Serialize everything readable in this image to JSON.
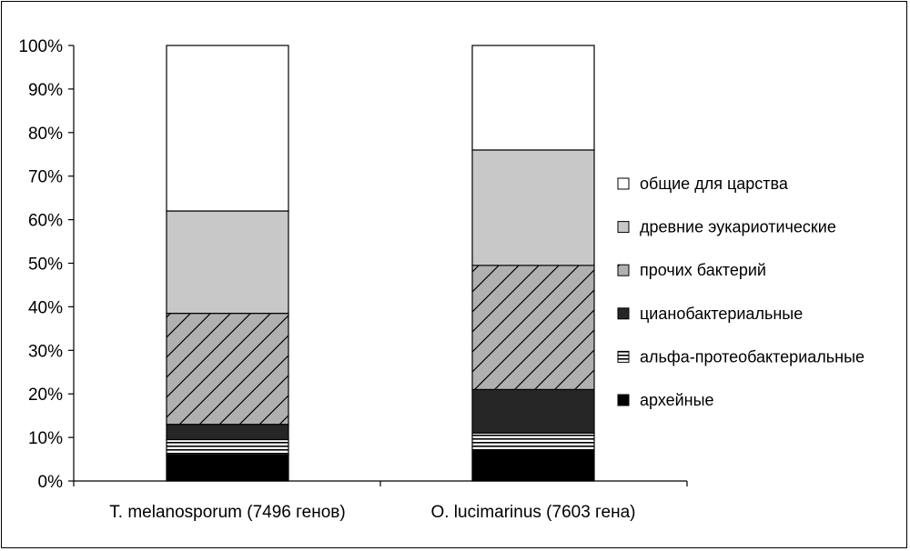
{
  "chart_data": {
    "type": "bar",
    "stacked": true,
    "categories": [
      "T. melanosporum (7496 генов)",
      "O. lucimarinus (7603 гена)"
    ],
    "ylim": [
      0,
      100
    ],
    "y_ticks": [
      "0%",
      "10%",
      "20%",
      "30%",
      "40%",
      "50%",
      "60%",
      "70%",
      "80%",
      "90%",
      "100%"
    ],
    "series": [
      {
        "name": "архейные",
        "values": [
          6,
          7
        ],
        "fill": "black"
      },
      {
        "name": "альфа-протеобактериальные",
        "values": [
          3.5,
          4
        ],
        "fill": "stripes"
      },
      {
        "name": "цианобактериальные",
        "values": [
          3.5,
          10
        ],
        "fill": "dark"
      },
      {
        "name": "прочих бактерий",
        "values": [
          25.5,
          28.5
        ],
        "fill": "hatch"
      },
      {
        "name": "древние эукариотические",
        "values": [
          23.5,
          26.5
        ],
        "fill": "light"
      },
      {
        "name": "общие для царства",
        "values": [
          38,
          24
        ],
        "fill": "white"
      }
    ],
    "legend_order": [
      5,
      4,
      3,
      2,
      1,
      0
    ],
    "legend_position": "right",
    "colors": {
      "black": "#000000",
      "dark": "#262626",
      "light": "#c8c8c8",
      "hatch_bg": "#b0b0b0",
      "white": "#ffffff"
    },
    "grid": false
  }
}
